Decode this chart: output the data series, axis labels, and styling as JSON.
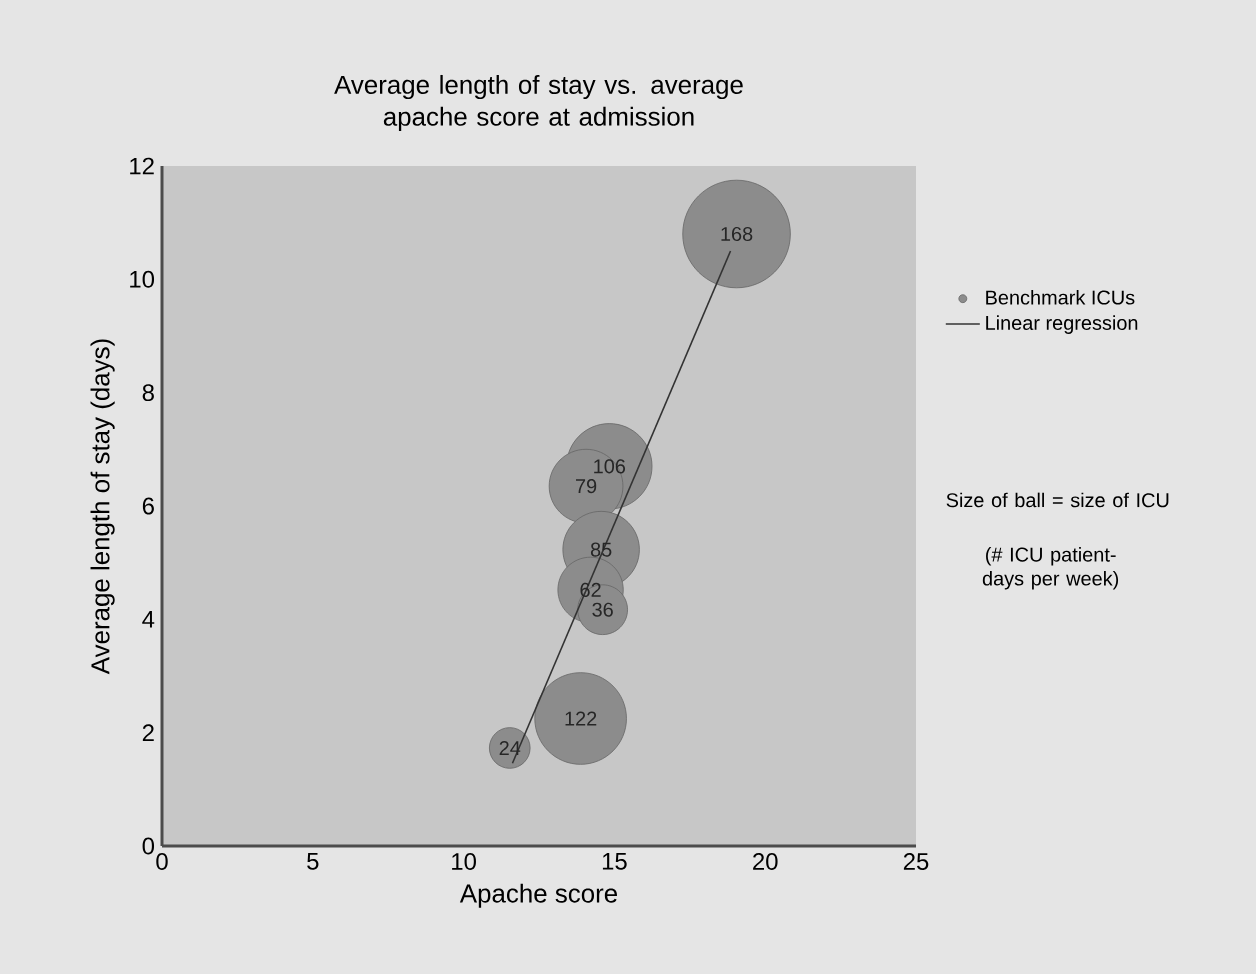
{
  "chart_data": {
    "type": "bubble",
    "title": "Average length of stay vs. average apache score at admission",
    "xlabel": "Apache score",
    "ylabel": "Average length of stay (days)",
    "xlim": [
      0,
      25
    ],
    "xticks": [
      0,
      5,
      10,
      15,
      20,
      25
    ],
    "ylim": [
      0,
      12
    ],
    "yticks": [
      0,
      2,
      4,
      6,
      8,
      10,
      12
    ],
    "grid": false,
    "legend": "right",
    "series": [
      {
        "name": "Benchmark ICUs",
        "marker": "circle",
        "color": "#8c8c8c",
        "x": [
          19.05,
          14.83,
          14.06,
          14.56,
          14.21,
          14.61,
          13.88,
          11.53
        ],
        "values": [
          10.8,
          6.7,
          6.35,
          5.23,
          4.52,
          4.17,
          2.25,
          1.73
        ],
        "sizes": [
          1,
          0.631,
          0.47,
          0.506,
          0.369,
          0.214,
          0.726,
          0.143
        ]
      },
      {
        "name": "Linear regression",
        "type": "line",
        "marker": "none",
        "color": "#333333",
        "x": [
          11.62,
          18.85
        ],
        "values": [
          1.46,
          10.5
        ]
      }
    ],
    "annotations": [
      {
        "text": "168",
        "x": 19.05,
        "y": 10.8
      },
      {
        "text": "106",
        "x": 14.83,
        "y": 6.7
      },
      {
        "text": "79",
        "x": 14.06,
        "y": 6.35
      },
      {
        "text": "85",
        "x": 14.56,
        "y": 5.23
      },
      {
        "text": "62",
        "x": 14.21,
        "y": 4.52
      },
      {
        "text": "36",
        "x": 14.61,
        "y": 4.17
      },
      {
        "text": "122",
        "x": 13.88,
        "y": 2.25
      },
      {
        "text": "24",
        "x": 11.53,
        "y": 1.73
      },
      "Size of ball = size of ICU",
      "(# ICU patient-days per week)"
    ]
  }
}
